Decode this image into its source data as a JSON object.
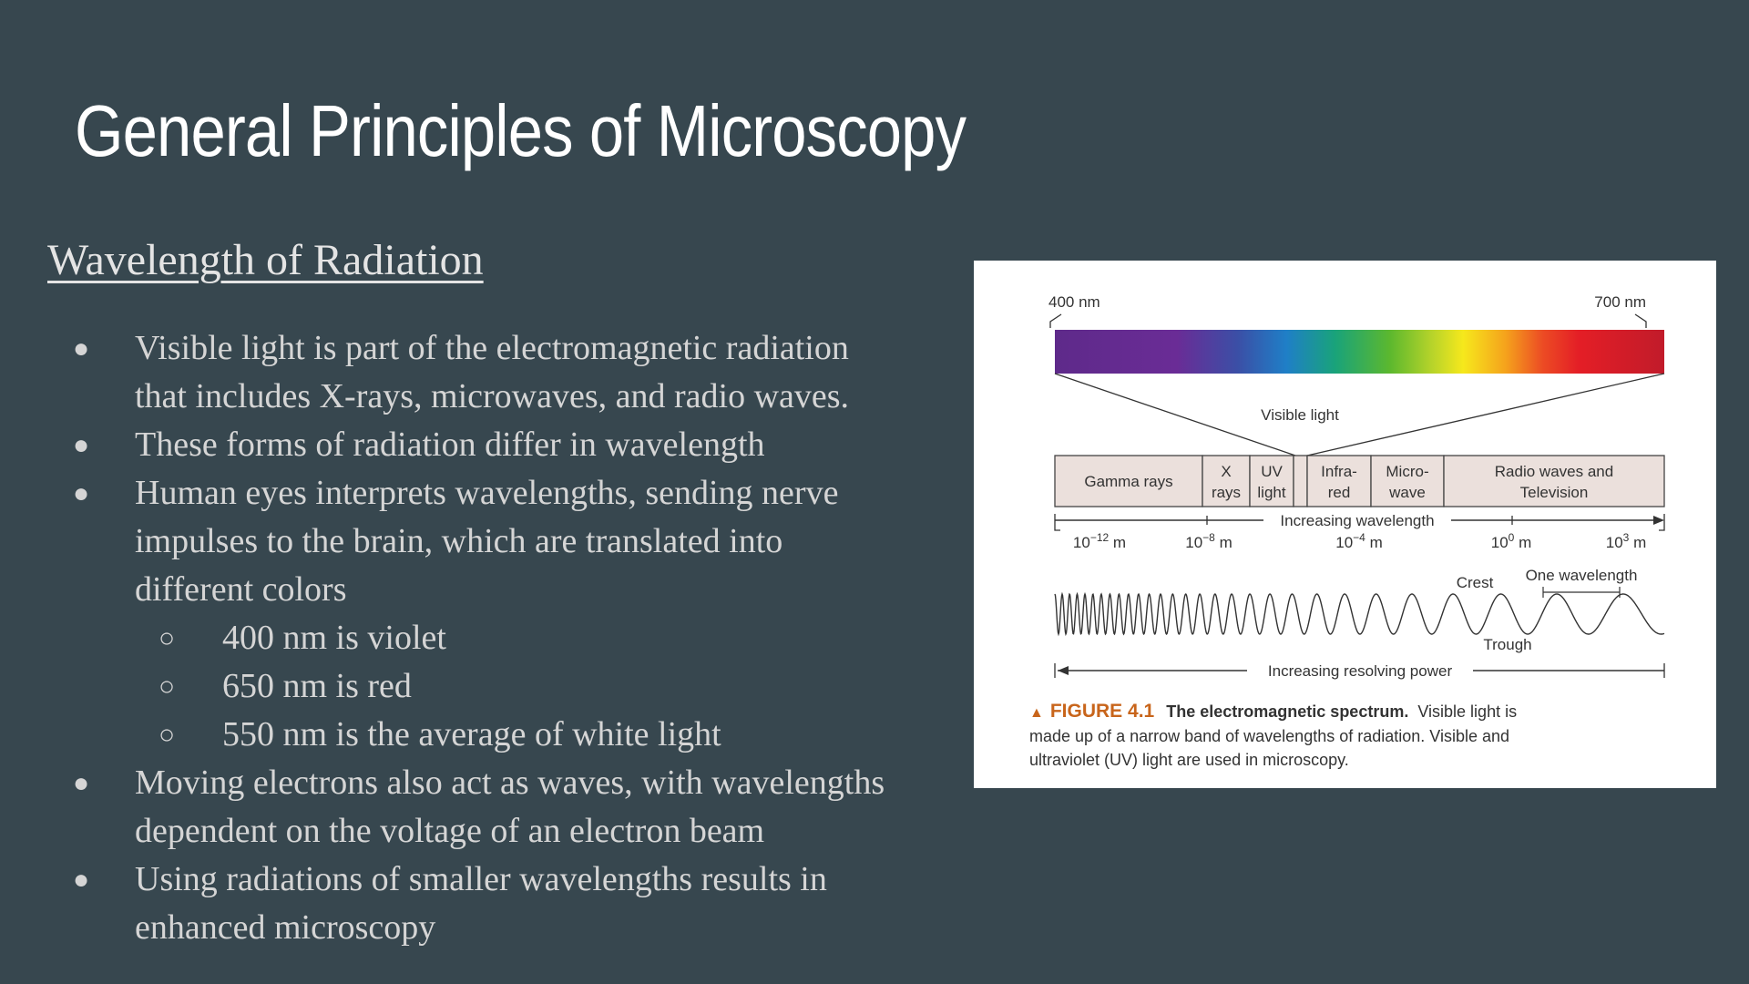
{
  "slide": {
    "title": "General Principles of Microscopy",
    "subheading": "Wavelength of Radiation"
  },
  "bullets": [
    {
      "level": 1,
      "lines": [
        "Visible light is part of the electromagnetic radiation",
        "that includes X-rays, microwaves, and radio waves."
      ]
    },
    {
      "level": 1,
      "lines": [
        "These forms of radiation differ in wavelength"
      ]
    },
    {
      "level": 1,
      "lines": [
        "Human eyes interprets wavelengths, sending nerve",
        "impulses to the brain, which are translated into",
        "different colors"
      ]
    },
    {
      "level": 2,
      "lines": [
        "400 nm is violet"
      ]
    },
    {
      "level": 2,
      "lines": [
        "650 nm is red"
      ]
    },
    {
      "level": 2,
      "lines": [
        "550 nm is the average of white light"
      ]
    },
    {
      "level": 1,
      "lines": [
        "Moving electrons also act as waves, with wavelengths",
        "dependent on the voltage of an electron beam"
      ]
    },
    {
      "level": 1,
      "lines": [
        "Using radiations of smaller wavelengths results in",
        "enhanced microscopy"
      ]
    }
  ],
  "bullet_symbols": {
    "level1": "●",
    "level2": "○"
  },
  "figure": {
    "label_400": "400 nm",
    "label_700": "700 nm",
    "visible_light": "Visible light",
    "bands": {
      "gamma": [
        "Gamma rays"
      ],
      "xrays": [
        "X",
        "rays"
      ],
      "uv": [
        "UV",
        "light"
      ],
      "infrared": [
        "Infra-",
        "red"
      ],
      "microwave": [
        "Micro-",
        "wave"
      ],
      "radio": [
        "Radio waves and",
        "Television"
      ]
    },
    "increasing_wavelength": "Increasing wavelength",
    "ticks": [
      {
        "base": "10",
        "exp": "−12",
        "unit": " m"
      },
      {
        "base": "10",
        "exp": "−8",
        "unit": " m"
      },
      {
        "base": "10",
        "exp": "−4",
        "unit": " m"
      },
      {
        "base": "10",
        "exp": "0",
        "unit": " m"
      },
      {
        "base": "10",
        "exp": "3",
        "unit": " m"
      }
    ],
    "crest": "Crest",
    "trough": "Trough",
    "one_wavelength": "One wavelength",
    "increasing_resolving_power": "Increasing resolving power",
    "caption": {
      "triangle": "▲",
      "label": "FIGURE 4.1",
      "bold": "The electromagnetic spectrum.",
      "line1_rest": "Visible light is",
      "line2": "made up of a narrow band of wavelengths of radiation. Visible and",
      "line3": "ultraviolet (UV) light are used in microscopy."
    },
    "colors": {
      "caption_accent": "#c8651b",
      "band_fill": "#ebe0dc",
      "line": "#333333"
    }
  }
}
